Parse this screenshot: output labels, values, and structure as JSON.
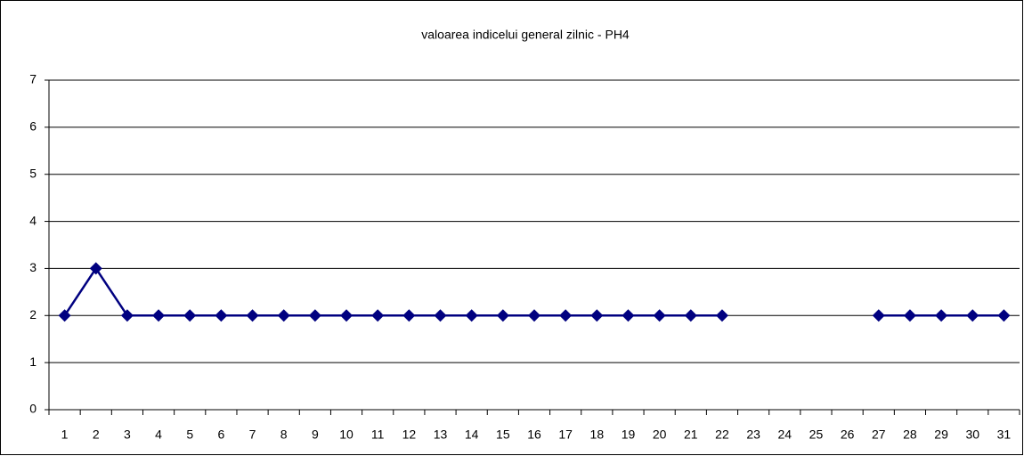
{
  "chart_data": {
    "type": "line",
    "title": "valoarea indicelui general zilnic - PH4",
    "categories": [
      "1",
      "2",
      "3",
      "4",
      "5",
      "6",
      "7",
      "8",
      "9",
      "10",
      "11",
      "12",
      "13",
      "14",
      "15",
      "16",
      "17",
      "18",
      "19",
      "20",
      "21",
      "22",
      "23",
      "24",
      "25",
      "26",
      "27",
      "28",
      "29",
      "30",
      "31"
    ],
    "series": [
      {
        "name": "PH4",
        "color": "#000080",
        "values": [
          2,
          3,
          2,
          2,
          2,
          2,
          2,
          2,
          2,
          2,
          2,
          2,
          2,
          2,
          2,
          2,
          2,
          2,
          2,
          2,
          2,
          2,
          null,
          null,
          null,
          null,
          2,
          2,
          2,
          2,
          2
        ]
      }
    ],
    "ylim": [
      0,
      7
    ],
    "yticks": [
      0,
      1,
      2,
      3,
      4,
      5,
      6,
      7
    ],
    "grid": true,
    "legend": false
  }
}
